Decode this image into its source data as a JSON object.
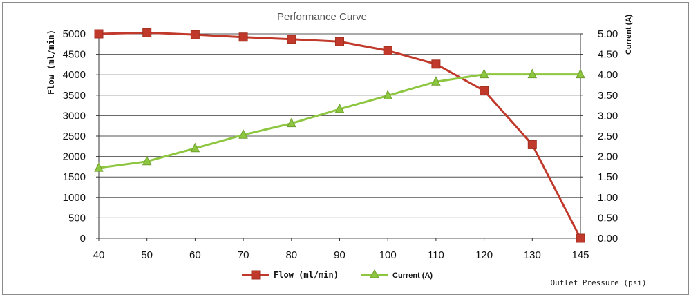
{
  "chart_data": {
    "type": "line",
    "title": "Performance Curve",
    "xlabel": "Outlet Pressure (psi)",
    "ylabel": "Flow (ml/min)",
    "y2label": "Current (A)",
    "categories": [
      "40",
      "50",
      "60",
      "70",
      "80",
      "90",
      "100",
      "110",
      "120",
      "130",
      "145"
    ],
    "ylim": [
      0,
      5000
    ],
    "y2lim": [
      0,
      5
    ],
    "yticks": [
      "0",
      "500",
      "1000",
      "1500",
      "2000",
      "2500",
      "3000",
      "3500",
      "4000",
      "4500",
      "5000"
    ],
    "y2ticks": [
      "0.00",
      "0.50",
      "1.00",
      "1.50",
      "2.00",
      "2.50",
      "3.00",
      "3.50",
      "4.00",
      "4.50",
      "5.00"
    ],
    "grid": true,
    "legend": "bottom",
    "series": [
      {
        "name": "Flow (ml/min)",
        "axis": "left",
        "color": "#c0392b",
        "marker": "square",
        "values": [
          5000,
          5030,
          4980,
          4920,
          4870,
          4810,
          4590,
          4260,
          3610,
          2290,
          0
        ]
      },
      {
        "name": "Current (A)",
        "axis": "right",
        "color": "#8dc63f",
        "marker": "triangle",
        "values": [
          1.72,
          1.88,
          2.2,
          2.53,
          2.81,
          3.16,
          3.49,
          3.83,
          4.01,
          4.01,
          4.01
        ]
      }
    ]
  }
}
